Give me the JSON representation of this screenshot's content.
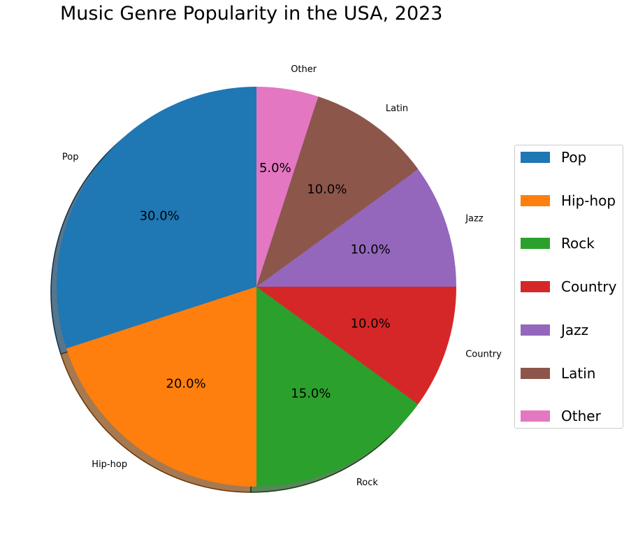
{
  "chart_data": {
    "type": "pie",
    "title": "Music Genre Popularity in the USA, 2023",
    "start_angle_deg": 90,
    "direction": "counterclockwise",
    "shadow": true,
    "legend_position": "right",
    "slices": [
      {
        "label": "Pop",
        "value": 30.0,
        "pct_label": "30.0%",
        "color": "#1f77b4"
      },
      {
        "label": "Hip-hop",
        "value": 20.0,
        "pct_label": "20.0%",
        "color": "#ff7f0e"
      },
      {
        "label": "Rock",
        "value": 15.0,
        "pct_label": "15.0%",
        "color": "#2ca02c"
      },
      {
        "label": "Country",
        "value": 10.0,
        "pct_label": "10.0%",
        "color": "#d62728"
      },
      {
        "label": "Jazz",
        "value": 10.0,
        "pct_label": "10.0%",
        "color": "#9467bd"
      },
      {
        "label": "Latin",
        "value": 10.0,
        "pct_label": "10.0%",
        "color": "#8c564b"
      },
      {
        "label": "Other",
        "value": 5.0,
        "pct_label": "5.0%",
        "color": "#e377c2"
      }
    ]
  }
}
